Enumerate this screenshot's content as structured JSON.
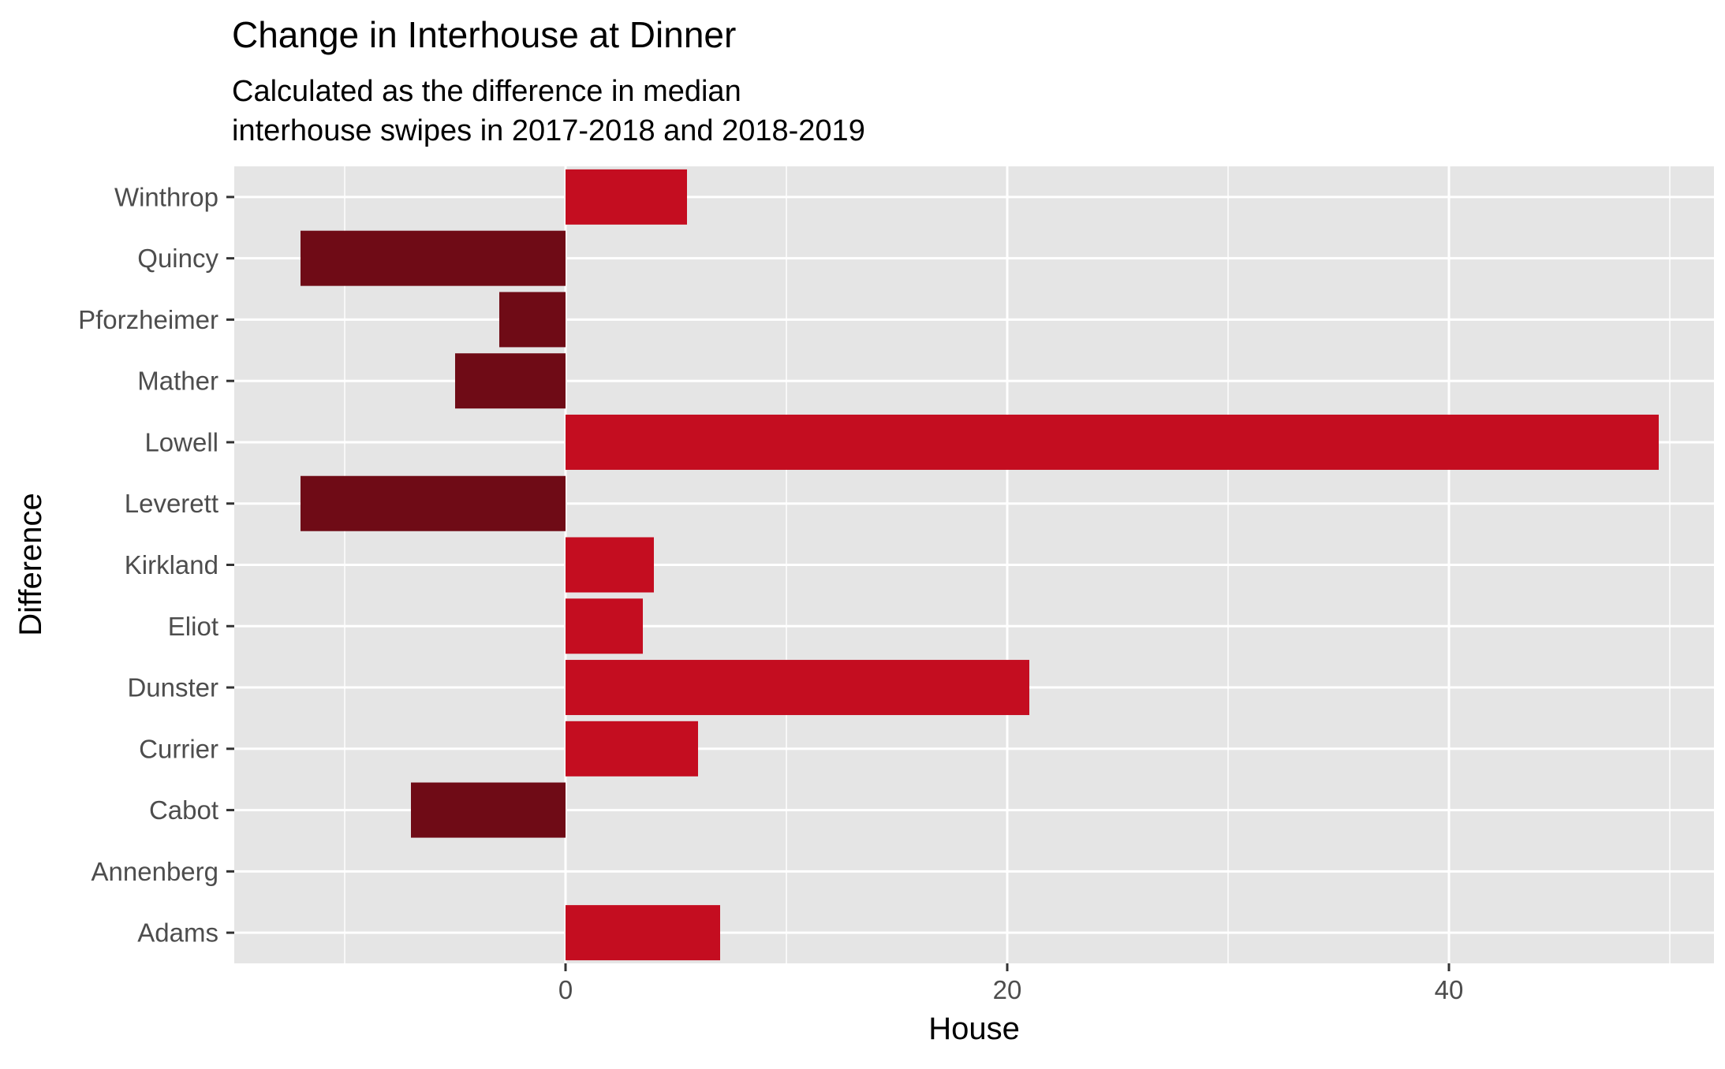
{
  "chart_data": {
    "type": "bar",
    "orientation": "horizontal",
    "title": "Change in Interhouse at Dinner",
    "subtitle_lines": [
      "Calculated as the difference in median",
      "interhouse swipes in 2017-2018 and 2018-2019"
    ],
    "xlabel": "House",
    "ylabel": "Difference",
    "categories": [
      "Adams",
      "Annenberg",
      "Cabot",
      "Currier",
      "Dunster",
      "Eliot",
      "Kirkland",
      "Leverett",
      "Lowell",
      "Mather",
      "Pforzheimer",
      "Quincy",
      "Winthrop"
    ],
    "values": [
      7,
      0,
      -7,
      6,
      21,
      3.5,
      4,
      -12,
      49.5,
      -5,
      -3,
      -12,
      5.5
    ],
    "xlim": [
      -15,
      52
    ],
    "x_ticks": [
      0,
      20,
      40
    ],
    "x_tick_labels": [
      "0",
      "20",
      "40"
    ],
    "grid": true,
    "legend": "none",
    "colors": {
      "panel_background": "#e5e5e5",
      "grid": "#ffffff",
      "positive_bar": "#c40d20",
      "negative_bar": "#6f0b16",
      "tick_mark": "#333333"
    }
  }
}
